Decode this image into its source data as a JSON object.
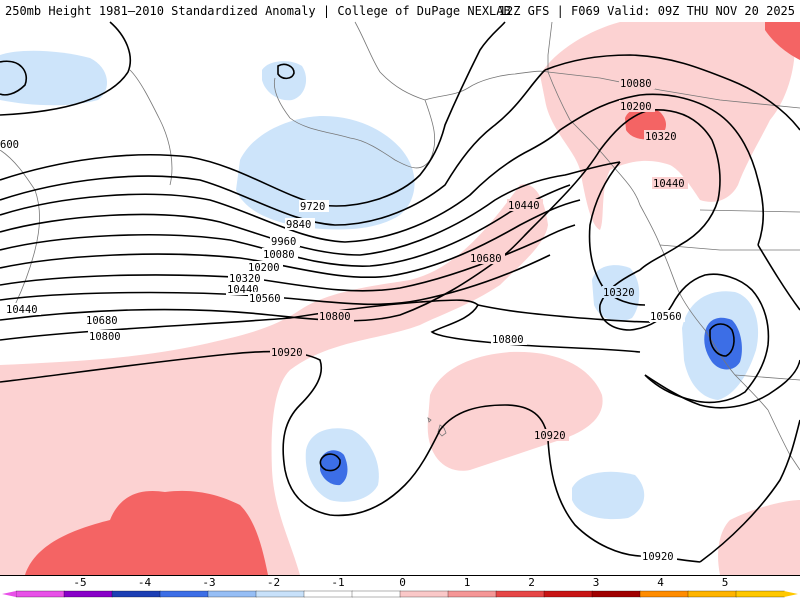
{
  "header": {
    "title": "250mb Height 1981–2010 Standardized Anomaly | College of DuPage NEXLAB",
    "run_info": "12Z GFS | F069 Valid: 09Z THU NOV 20 2025"
  },
  "contour_labels": {
    "c600": "600",
    "c9720": "9720",
    "c9840": "9840",
    "c9960": "9960",
    "c10080a": "10080",
    "c10200a": "10200",
    "c10320a": "10320",
    "c10440a": "10440",
    "c10560a": "10560",
    "c10440w": "10440",
    "c10680a": "10680",
    "c10800a": "10800",
    "c10800b": "10800",
    "c10920a": "10920",
    "c10680b": "10680",
    "c10440b": "10440",
    "c10080b": "10080",
    "c10200b": "10200",
    "c10320b": "10320",
    "c10440c": "10440",
    "c10320c": "10320",
    "c10560b": "10560",
    "c10800c": "10800",
    "c10920b": "10920",
    "c10920c": "10920"
  },
  "colorbar": {
    "ticks": [
      "-5",
      "-4",
      "-3",
      "-2",
      "-1",
      "0",
      "1",
      "2",
      "3",
      "4",
      "5"
    ],
    "colors": [
      "#e850e8",
      "#8800c8",
      "#1c3fb4",
      "#3c6ee6",
      "#96bef5",
      "#c8e1fa",
      "#ffffff",
      "#ffffff",
      "#fac8c8",
      "#f59696",
      "#e64646",
      "#c81414",
      "#a00000",
      "#ff8c00",
      "#ffb400",
      "#ffc800"
    ]
  },
  "anomaly_colors": {
    "neg1": "#cde4fa",
    "neg2": "#3c6ee6",
    "pos1": "#fcd2d2",
    "pos2": "#f46464",
    "land": "#ffffff"
  }
}
